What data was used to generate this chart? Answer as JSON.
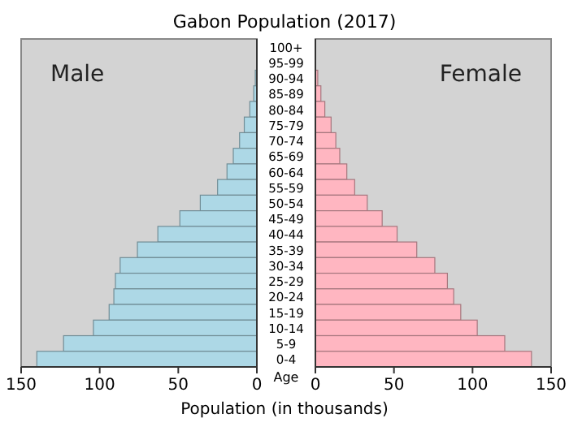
{
  "chart_data": [
    {
      "type": "bar",
      "orientation": "horizontal",
      "title": "Gabon Population (2017)",
      "categories": [
        "100+",
        "95-99",
        "90-94",
        "85-89",
        "80-84",
        "75-79",
        "70-74",
        "65-69",
        "60-64",
        "55-59",
        "50-54",
        "45-49",
        "40-44",
        "35-39",
        "30-34",
        "25-29",
        "20-24",
        "15-19",
        "10-14",
        "5-9",
        "0-4"
      ],
      "series": [
        {
          "name": "Male",
          "color": "#add8e6",
          "values": [
            0,
            0,
            1,
            2,
            4.5,
            8,
            11,
            15,
            19,
            25,
            36,
            49,
            63,
            76,
            87,
            90,
            91,
            94,
            104,
            123,
            140
          ]
        }
      ],
      "xlim": [
        150,
        0
      ],
      "xticks": [
        150,
        100,
        50,
        0
      ],
      "legend": "top left"
    },
    {
      "type": "bar",
      "orientation": "horizontal",
      "xlabel": "Population (in thousands)",
      "ylabel": "Age",
      "series": [
        {
          "name": "Female",
          "color": "#ffb6c1",
          "values": [
            0,
            0,
            1.5,
            3.5,
            6,
            10,
            13,
            15.5,
            20,
            25,
            33,
            42.5,
            52,
            64.5,
            76,
            84,
            88,
            92.5,
            103,
            120.5,
            137.5
          ]
        }
      ],
      "xlim": [
        0,
        150
      ],
      "xticks": [
        0,
        50,
        100,
        150
      ],
      "legend": "top right",
      "tick_labels": "x"
    }
  ]
}
